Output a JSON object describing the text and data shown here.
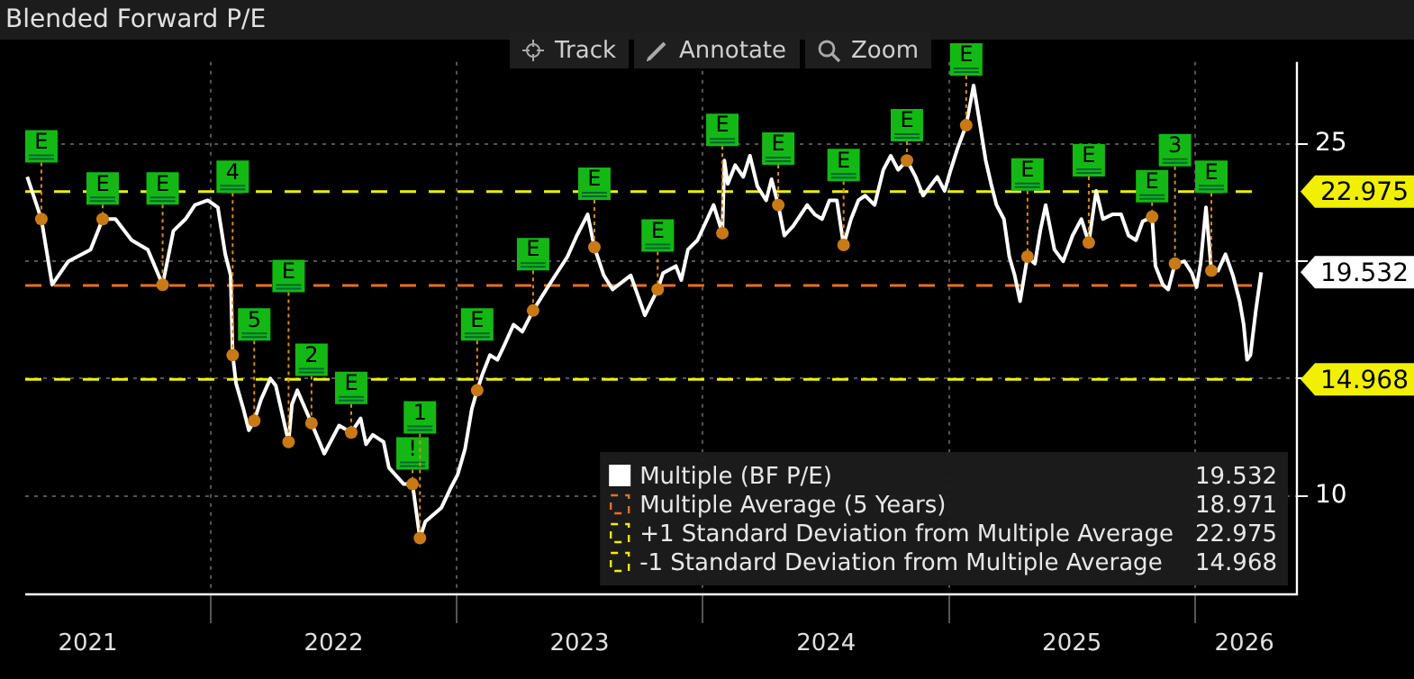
{
  "chart_data": {
    "type": "line",
    "title": "Blended Forward P/E",
    "annotations": [
      "Track",
      "Annotate",
      "Zoom",
      "19.532",
      "18.971",
      "22.975",
      "14.968",
      {
        "text": "E",
        "x": "2021-04-24",
        "y": 21.8
      },
      {
        "text": "E",
        "x": "2021-07-24",
        "y": 21.8
      },
      {
        "text": "E",
        "x": "2021-10-21",
        "y": 19.0
      },
      {
        "text": "4",
        "x": "2022-02-02",
        "y": 16.0
      },
      {
        "text": "5",
        "x": "2022-03-06",
        "y": 13.2
      },
      {
        "text": "E",
        "x": "2022-04-26",
        "y": 12.3
      },
      {
        "text": "2",
        "x": "2022-05-30",
        "y": 13.1
      },
      {
        "text": "E",
        "x": "2022-07-28",
        "y": 12.7
      },
      {
        "text": "!",
        "x": "2022-10-27",
        "y": 10.5
      },
      {
        "text": "1",
        "x": "2022-11-07",
        "y": 8.2
      },
      {
        "text": "E",
        "x": "2023-01-31",
        "y": 14.5
      },
      {
        "text": "E",
        "x": "2023-04-24",
        "y": 17.9
      },
      {
        "text": "E",
        "x": "2023-07-24",
        "y": 20.6
      },
      {
        "text": "E",
        "x": "2023-10-26",
        "y": 18.8
      },
      {
        "text": "E",
        "x": "2024-01-30",
        "y": 21.2
      },
      {
        "text": "E",
        "x": "2024-04-22",
        "y": 22.4
      },
      {
        "text": "E",
        "x": "2024-07-28",
        "y": 20.7
      },
      {
        "text": "E",
        "x": "2024-10-30",
        "y": 24.3
      },
      {
        "text": "E",
        "x": "2025-01-26",
        "y": 25.8
      },
      {
        "text": "E",
        "x": "2025-04-27",
        "y": 20.2
      },
      {
        "text": "E",
        "x": "2025-07-27",
        "y": 20.8
      },
      {
        "text": "E",
        "x": "2025-10-29",
        "y": 21.9
      },
      {
        "text": "3",
        "x": "2025-12-02",
        "y": 19.9
      },
      {
        "text": "E",
        "x": "2026-01-25",
        "y": 19.6
      }
    ],
    "series": [
      {
        "name": "Multiple (BF P/E)",
        "color": "#ffffff",
        "x": [
          "2021-04-03",
          "2021-04-24",
          "2021-05-10",
          "2021-06-03",
          "2021-07-06",
          "2021-07-24",
          "2021-08-12",
          "2021-09-05",
          "2021-09-29",
          "2021-10-21",
          "2021-11-06",
          "2021-11-24",
          "2021-12-08",
          "2021-12-27",
          "2022-01-11",
          "2022-01-22",
          "2022-01-30",
          "2022-02-02",
          "2022-02-07",
          "2022-02-18",
          "2022-02-26",
          "2022-03-06",
          "2022-03-16",
          "2022-03-30",
          "2022-04-07",
          "2022-04-26",
          "2022-05-01",
          "2022-05-09",
          "2022-05-30",
          "2022-06-18",
          "2022-07-10",
          "2022-07-28",
          "2022-08-11",
          "2022-08-19",
          "2022-08-29",
          "2022-09-14",
          "2022-09-22",
          "2022-10-14",
          "2022-10-27",
          "2022-11-07",
          "2022-11-15",
          "2022-12-09",
          "2022-12-22",
          "2023-01-02",
          "2023-01-13",
          "2023-01-23",
          "2023-01-31",
          "2023-02-08",
          "2023-02-19",
          "2023-03-02",
          "2023-03-12",
          "2023-03-26",
          "2023-04-08",
          "2023-04-24",
          "2023-05-18",
          "2023-06-14",
          "2023-06-28",
          "2023-07-14",
          "2023-07-24",
          "2023-08-07",
          "2023-08-20",
          "2023-09-16",
          "2023-10-07",
          "2023-10-26",
          "2023-11-03",
          "2023-11-22",
          "2023-11-30",
          "2023-12-10",
          "2023-12-24",
          "2024-01-06",
          "2024-01-17",
          "2024-01-30",
          "2024-02-02",
          "2024-02-07",
          "2024-02-18",
          "2024-03-01",
          "2024-03-11",
          "2024-03-22",
          "2024-04-04",
          "2024-04-12",
          "2024-04-22",
          "2024-05-01",
          "2024-05-14",
          "2024-06-04",
          "2024-06-15",
          "2024-06-26",
          "2024-07-07",
          "2024-07-18",
          "2024-07-28",
          "2024-08-08",
          "2024-08-19",
          "2024-08-29",
          "2024-09-12",
          "2024-09-25",
          "2024-10-06",
          "2024-10-17",
          "2024-10-30",
          "2024-11-12",
          "2024-11-23",
          "2024-12-14",
          "2024-12-25",
          "2025-01-02",
          "2025-01-13",
          "2025-01-26",
          "2025-02-06",
          "2025-02-14",
          "2025-02-24",
          "2025-03-04",
          "2025-03-12",
          "2025-03-23",
          "2025-03-31",
          "2025-04-08",
          "2025-04-16",
          "2025-04-27",
          "2025-05-08",
          "2025-05-16",
          "2025-05-24",
          "2025-06-06",
          "2025-06-19",
          "2025-07-03",
          "2025-07-16",
          "2025-07-27",
          "2025-08-07",
          "2025-08-17",
          "2025-08-31",
          "2025-09-13",
          "2025-09-24",
          "2025-10-05",
          "2025-10-15",
          "2025-10-29",
          "2025-11-03",
          "2025-11-14",
          "2025-11-22",
          "2025-12-02",
          "2025-12-16",
          "2025-12-27",
          "2026-01-03",
          "2026-01-09",
          "2026-01-17",
          "2026-01-25",
          "2026-02-04",
          "2026-02-15",
          "2026-02-26",
          "2026-03-08",
          "2026-03-14",
          "2026-03-19",
          "2026-03-24",
          "2026-04-01",
          "2026-04-09"
        ],
        "values": [
          23.6,
          21.8,
          19.0,
          20.0,
          20.5,
          21.8,
          21.8,
          20.9,
          20.5,
          19.0,
          21.3,
          21.8,
          22.4,
          22.6,
          22.3,
          20.3,
          19.4,
          16.0,
          14.8,
          13.7,
          12.8,
          13.2,
          14.1,
          15.0,
          14.7,
          12.3,
          13.9,
          14.5,
          13.1,
          11.8,
          13.0,
          12.7,
          13.3,
          12.2,
          12.6,
          12.3,
          11.2,
          10.5,
          10.5,
          8.2,
          8.9,
          9.5,
          10.3,
          10.9,
          12.0,
          13.7,
          14.5,
          15.2,
          16.0,
          15.8,
          16.4,
          17.3,
          17.0,
          17.9,
          19.0,
          20.2,
          21.1,
          22.0,
          20.6,
          19.4,
          18.8,
          19.4,
          17.7,
          18.8,
          19.5,
          19.8,
          19.2,
          20.5,
          20.9,
          21.7,
          22.4,
          21.2,
          24.3,
          23.3,
          24.1,
          23.6,
          24.5,
          23.2,
          22.6,
          23.5,
          22.4,
          21.1,
          21.5,
          22.4,
          22.0,
          21.8,
          22.6,
          22.6,
          20.7,
          21.8,
          22.6,
          22.8,
          22.4,
          23.9,
          24.5,
          23.9,
          24.3,
          23.6,
          22.8,
          23.6,
          23.0,
          23.8,
          24.8,
          25.8,
          27.5,
          26.1,
          24.3,
          23.3,
          22.4,
          21.8,
          20.2,
          19.4,
          18.3,
          20.2,
          19.9,
          21.3,
          22.4,
          20.5,
          20.0,
          21.1,
          21.8,
          20.8,
          23.0,
          21.8,
          22.0,
          22.0,
          21.1,
          20.9,
          21.7,
          21.9,
          19.8,
          19.0,
          18.8,
          19.9,
          20.0,
          19.5,
          18.9,
          19.9,
          22.3,
          19.6,
          19.6,
          20.3,
          19.4,
          18.3,
          17.3,
          15.8,
          16.0,
          17.9,
          19.532
        ]
      }
    ],
    "xlim": [
      "2021-03-31",
      "2026-06-01"
    ],
    "xticks": [
      {
        "value": "2021-07-02",
        "label": "2021"
      },
      {
        "value": "2022-01-01",
        "label": null
      },
      {
        "value": "2022-07-02",
        "label": "2022"
      },
      {
        "value": "2023-01-01",
        "label": null
      },
      {
        "value": "2023-07-02",
        "label": "2023"
      },
      {
        "value": "2024-01-01",
        "label": null
      },
      {
        "value": "2024-07-02",
        "label": "2024"
      },
      {
        "value": "2025-01-01",
        "label": null
      },
      {
        "value": "2025-07-02",
        "label": "2025"
      },
      {
        "value": "2026-01-01",
        "label": null
      },
      {
        "value": "2026-03-15",
        "label": "2026"
      }
    ],
    "ylim": [
      5.8,
      28.5
    ],
    "yticks": [
      10,
      {
        "value": 15,
        "label": null
      },
      {
        "value": 20,
        "label": null
      },
      25
    ],
    "ref_lines": [
      {
        "axis": "y",
        "value": 18.971,
        "label": "Multiple Average (5 Years)",
        "color": "#e8711c",
        "line_style": "dashed"
      },
      {
        "axis": "y",
        "value": 22.975,
        "label": "+1 Standard Deviation from Multiple Average",
        "color": "#f0f000",
        "line_style": "dashed"
      },
      {
        "axis": "y",
        "value": 14.968,
        "label": "-1 Standard Deviation from Multiple Average",
        "color": "#f0f000",
        "line_style": "dashed"
      }
    ],
    "grid": true,
    "legend": "bottom right"
  }
}
